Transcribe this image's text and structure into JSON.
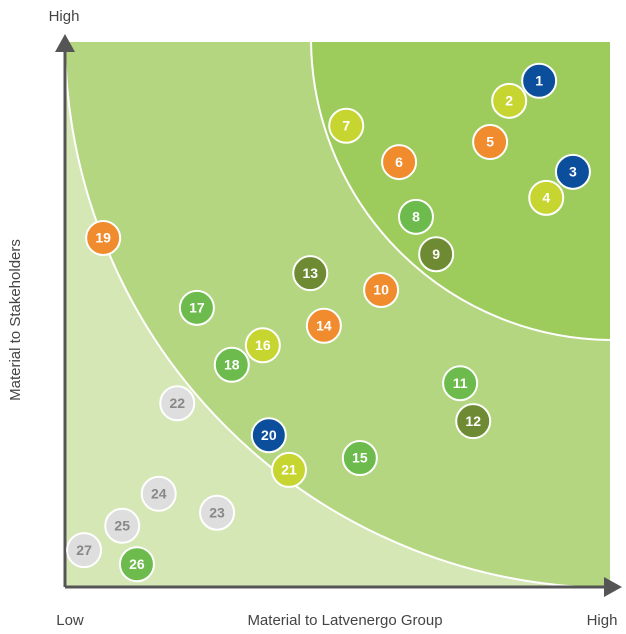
{
  "chart_data": {
    "type": "scatter",
    "xlabel": "Material to Latvenergo Group",
    "ylabel": "Material to Stakeholders",
    "xlim": [
      0,
      100
    ],
    "ylim": [
      0,
      100
    ],
    "xticks": [
      {
        "value": 0,
        "label": "Low"
      },
      {
        "value": 100,
        "label": "High"
      }
    ],
    "yticks": [
      {
        "value": 100,
        "label": "High"
      }
    ],
    "labels": [
      "1",
      "2",
      "3",
      "4",
      "5",
      "6",
      "7",
      "8",
      "9",
      "10",
      "11",
      "12",
      "13",
      "14",
      "15",
      "16",
      "17",
      "18",
      "19",
      "20",
      "21",
      "22",
      "23",
      "24",
      "25",
      "26",
      "27"
    ],
    "x": [
      87.0,
      81.5,
      93.2,
      88.3,
      78.0,
      61.3,
      51.6,
      64.4,
      68.1,
      58.0,
      72.5,
      74.9,
      45.0,
      47.5,
      54.1,
      36.3,
      24.2,
      30.6,
      7.0,
      37.4,
      41.1,
      20.6,
      27.9,
      17.2,
      10.5,
      13.2,
      3.5
    ],
    "y": [
      93.4,
      89.7,
      76.6,
      71.8,
      82.1,
      78.4,
      85.1,
      68.3,
      61.4,
      54.8,
      37.6,
      30.6,
      57.9,
      48.2,
      23.8,
      44.6,
      51.5,
      41.0,
      64.4,
      28.0,
      21.6,
      33.9,
      13.7,
      17.2,
      11.3,
      4.2,
      6.8
    ],
    "colors": [
      "#0b4f9c",
      "#c7d531",
      "#0b4f9c",
      "#c7d531",
      "#f08c2e",
      "#f08c2e",
      "#c7d531",
      "#6cbb4c",
      "#6e8a33",
      "#f08c2e",
      "#6cbb4c",
      "#6e8a33",
      "#6e8a33",
      "#f08c2e",
      "#6cbb4c",
      "#c7d531",
      "#6cbb4c",
      "#6cbb4c",
      "#f08c2e",
      "#0b4f9c",
      "#c7d531",
      "#dedede",
      "#dedede",
      "#dedede",
      "#dedede",
      "#6cbb4c",
      "#dedede"
    ]
  }
}
